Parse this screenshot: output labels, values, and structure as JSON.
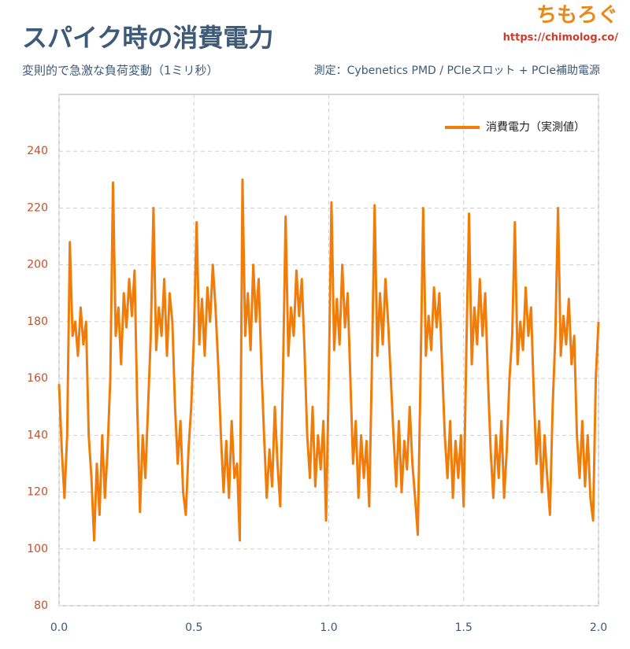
{
  "chart_data": {
    "type": "line",
    "title": "スパイク時の消費電力",
    "subtitle": "変則的で急激な負荷変動（1ミリ秒）",
    "source": "測定：Cybenetics PMD / PCIeスロット + PCIe補助電源",
    "logo": "ちもろぐ",
    "logo_url": "https://chimolog.co/",
    "xlim": [
      0,
      2
    ],
    "xticks": [
      {
        "value": 0,
        "label": "0.0"
      },
      {
        "value": 0.5,
        "label": "0.5"
      },
      {
        "value": 1,
        "label": "1.0"
      },
      {
        "value": 1.5,
        "label": "1.5"
      },
      {
        "value": 2,
        "label": "2.0"
      }
    ],
    "ylim": [
      80,
      260
    ],
    "yticks": [
      80,
      100,
      120,
      140,
      160,
      180,
      200,
      220,
      240
    ],
    "grid": true,
    "legend": "upper right",
    "x": [
      0,
      0.01,
      0.02,
      0.03,
      0.04,
      0.05,
      0.06,
      0.07,
      0.08,
      0.09,
      0.1,
      0.11,
      0.12,
      0.13,
      0.14,
      0.15,
      0.16,
      0.17,
      0.18,
      0.19,
      0.2,
      0.21,
      0.22,
      0.23,
      0.24,
      0.25,
      0.26,
      0.27,
      0.28,
      0.29,
      0.3,
      0.31,
      0.32,
      0.33,
      0.34,
      0.35,
      0.36,
      0.37,
      0.38,
      0.39,
      0.4,
      0.41,
      0.42,
      0.43,
      0.44,
      0.45,
      0.46,
      0.47,
      0.48,
      0.49,
      0.5,
      0.51,
      0.52,
      0.53,
      0.54,
      0.55,
      0.56,
      0.57,
      0.58,
      0.59,
      0.6,
      0.61,
      0.62,
      0.63,
      0.64,
      0.65,
      0.66,
      0.67,
      0.68,
      0.69,
      0.7,
      0.71,
      0.72,
      0.73,
      0.74,
      0.75,
      0.76,
      0.77,
      0.78,
      0.79,
      0.8,
      0.81,
      0.82,
      0.83,
      0.84,
      0.85,
      0.86,
      0.87,
      0.88,
      0.89,
      0.9,
      0.91,
      0.92,
      0.93,
      0.94,
      0.95,
      0.96,
      0.97,
      0.98,
      0.99,
      1,
      1.01,
      1.02,
      1.03,
      1.04,
      1.05,
      1.06,
      1.07,
      1.08,
      1.09,
      1.1,
      1.11,
      1.12,
      1.13,
      1.14,
      1.15,
      1.16,
      1.17,
      1.18,
      1.19,
      1.2,
      1.21,
      1.22,
      1.23,
      1.24,
      1.25,
      1.26,
      1.27,
      1.28,
      1.29,
      1.3,
      1.31,
      1.32,
      1.33,
      1.34,
      1.35,
      1.36,
      1.37,
      1.38,
      1.39,
      1.4,
      1.41,
      1.42,
      1.43,
      1.44,
      1.45,
      1.46,
      1.47,
      1.48,
      1.49,
      1.5,
      1.51,
      1.52,
      1.53,
      1.54,
      1.55,
      1.56,
      1.57,
      1.58,
      1.59,
      1.6,
      1.61,
      1.62,
      1.63,
      1.64,
      1.65,
      1.66,
      1.67,
      1.68,
      1.69,
      1.7,
      1.71,
      1.72,
      1.73,
      1.74,
      1.75,
      1.76,
      1.77,
      1.78,
      1.79,
      1.8,
      1.81,
      1.82,
      1.83,
      1.84,
      1.85,
      1.86,
      1.87,
      1.88,
      1.89,
      1.9,
      1.91,
      1.92,
      1.93,
      1.94,
      1.95,
      1.96,
      1.97,
      1.98,
      1.99,
      2
    ],
    "series": [
      {
        "name": "消費電力（実測値）",
        "color": "#f07d0a",
        "values": [
          158,
          135,
          118,
          140,
          208,
          175,
          180,
          168,
          185,
          172,
          180,
          140,
          125,
          103,
          130,
          112,
          140,
          118,
          135,
          160,
          229,
          175,
          185,
          165,
          190,
          178,
          195,
          182,
          198,
          150,
          113,
          140,
          125,
          150,
          175,
          220,
          170,
          185,
          175,
          195,
          168,
          190,
          180,
          150,
          130,
          145,
          120,
          112,
          135,
          150,
          175,
          215,
          172,
          188,
          168,
          192,
          180,
          200,
          185,
          165,
          140,
          120,
          138,
          118,
          145,
          125,
          130,
          103,
          230,
          175,
          190,
          170,
          200,
          180,
          195,
          165,
          140,
          118,
          135,
          122,
          150,
          130,
          115,
          160,
          217,
          168,
          185,
          175,
          198,
          182,
          195,
          170,
          140,
          125,
          150,
          122,
          140,
          128,
          145,
          110,
          160,
          222,
          170,
          188,
          172,
          200,
          178,
          190,
          160,
          130,
          145,
          118,
          140,
          125,
          138,
          115,
          165,
          221,
          168,
          190,
          172,
          195,
          180,
          160,
          140,
          122,
          145,
          120,
          138,
          128,
          150,
          130,
          118,
          105,
          160,
          220,
          168,
          182,
          170,
          192,
          178,
          190,
          165,
          140,
          125,
          145,
          118,
          138,
          125,
          140,
          115,
          170,
          218,
          165,
          185,
          172,
          195,
          175,
          190,
          160,
          135,
          118,
          140,
          125,
          145,
          118,
          135,
          160,
          175,
          215,
          165,
          180,
          170,
          192,
          175,
          185,
          155,
          130,
          145,
          120,
          140,
          125,
          112,
          150,
          175,
          220,
          168,
          182,
          172,
          188,
          165,
          175,
          140,
          125,
          145,
          122,
          140,
          118,
          110,
          160,
          180
        ]
      }
    ]
  }
}
